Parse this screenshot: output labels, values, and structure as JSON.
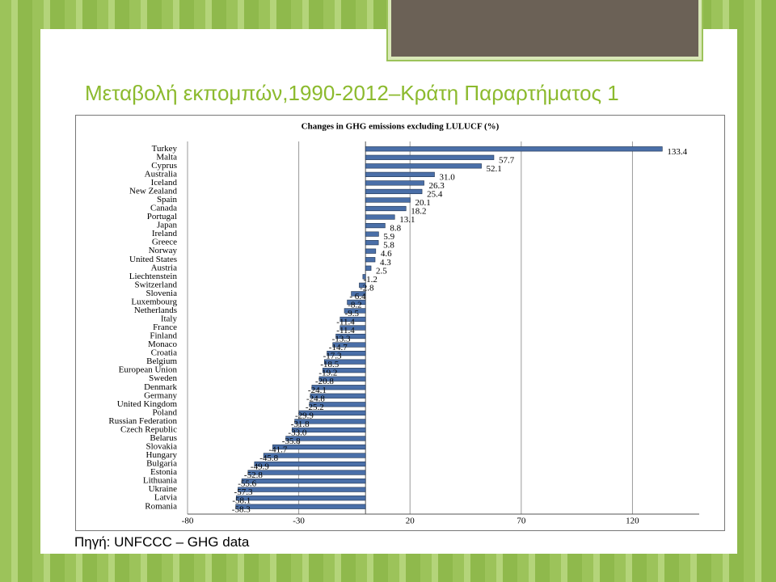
{
  "slide_title": "Μεταβολή εκπομπών,1990-2012–Κράτη Παραρτήματος 1",
  "source": "Πηγή: UNFCCC – GHG data",
  "chart_data": {
    "type": "barh",
    "title": "Changes in GHG emissions excluding LULUCF (%)",
    "categories": [
      "Turkey",
      "Malta",
      "Cyprus",
      "Australia",
      "Iceland",
      "New Zealand",
      "Spain",
      "Canada",
      "Portugal",
      "Japan",
      "Ireland",
      "Greece",
      "Norway",
      "United States",
      "Austria",
      "Liechtenstein",
      "Switzerland",
      "Slovenia",
      "Luxembourg",
      "Netherlands",
      "Italy",
      "France",
      "Finland",
      "Monaco",
      "Croatia",
      "Belgium",
      "European Union",
      "Sweden",
      "Denmark",
      "Germany",
      "United Kingdom",
      "Poland",
      "Russian Federation",
      "Czech Republic",
      "Belarus",
      "Slovakia",
      "Hungary",
      "Bulgaria",
      "Estonia",
      "Lithuania",
      "Ukraine",
      "Latvia",
      "Romania"
    ],
    "values": [
      133.4,
      57.7,
      52.1,
      31.0,
      26.3,
      25.4,
      20.1,
      18.2,
      13.1,
      8.8,
      5.9,
      5.8,
      4.6,
      4.3,
      2.5,
      -1.2,
      -2.8,
      -6.4,
      -8.2,
      -9.5,
      -11.4,
      -11.4,
      -13.3,
      -14.7,
      -17.3,
      -18.5,
      -19.2,
      -20.8,
      -24.1,
      -24.8,
      -25.2,
      -29.9,
      -31.8,
      -33.0,
      -35.8,
      -41.7,
      -45.8,
      -49.9,
      -52.8,
      -55.6,
      -57.3,
      -58.1,
      -58.3
    ],
    "value_labels": [
      "133.4",
      "57.7",
      "52.1",
      "31.0",
      "26.3",
      "25.4",
      "20.1",
      "18.2",
      "13.1",
      "8.8",
      "5.9",
      "5.8",
      "4.6",
      "4.3",
      "2.5",
      "-1.2",
      "-2.8",
      "- 6.4",
      "-8.2",
      "-9.5",
      "-11.4",
      "-11.4",
      "-13.3",
      "-14.7",
      "-17.3",
      "-18.5",
      "-19.2",
      "-20.8",
      "-24.1",
      "-24.8",
      "-25.2",
      "-29.9",
      "-31.8",
      "-33.0",
      "-35.8",
      "-41.7",
      "-45.8",
      "-49.9",
      "-52.8",
      "-55.6",
      "-57.3",
      "-58.1",
      "-58.3"
    ],
    "color": "#4a6fa8",
    "xlim": [
      -80,
      150
    ],
    "xticks": [
      -80,
      -30,
      20,
      70,
      120
    ],
    "grid": true
  }
}
